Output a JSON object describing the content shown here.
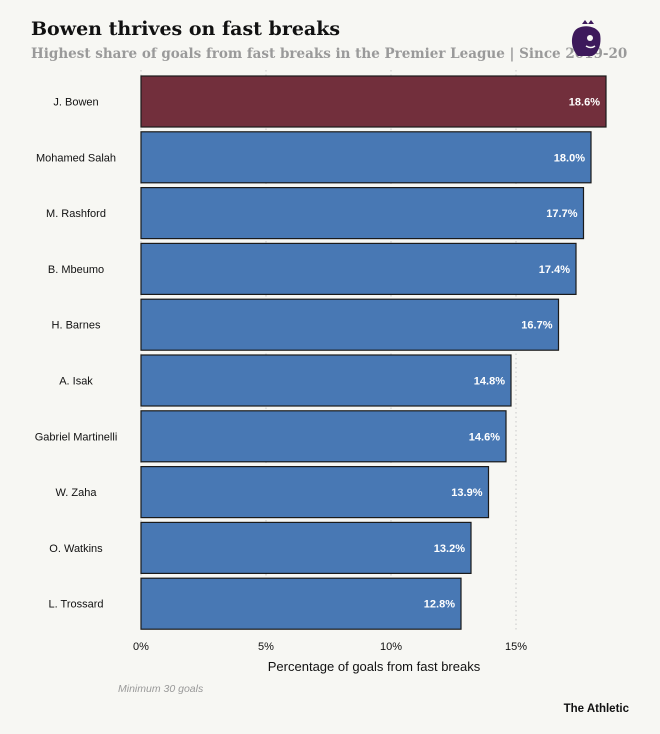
{
  "chart_data": {
    "type": "bar",
    "orientation": "horizontal",
    "title": "Bowen thrives on fast breaks",
    "subtitle": "Highest share of goals from fast breaks in the Premier League | Since 2019-20",
    "xlabel": "Percentage of goals from fast breaks",
    "ylabel": "",
    "xlim": [
      0,
      18.6
    ],
    "xticks": [
      "0%",
      "5%",
      "10%",
      "15%"
    ],
    "xtick_values": [
      0,
      5,
      10,
      15
    ],
    "grid": "vertical dotted",
    "categories": [
      "J. Bowen",
      "Mohamed Salah",
      "M. Rashford",
      "B. Mbeumo",
      "H. Barnes",
      "A. Isak",
      "Gabriel Martinelli",
      "W. Zaha",
      "O. Watkins",
      "L. Trossard"
    ],
    "values": [
      18.6,
      18.0,
      17.7,
      17.4,
      16.7,
      14.8,
      14.6,
      13.9,
      13.2,
      12.8
    ],
    "data_labels": [
      "18.6%",
      "18.0%",
      "17.7%",
      "17.4%",
      "16.7%",
      "14.8%",
      "14.6%",
      "13.9%",
      "13.2%",
      "12.8%"
    ],
    "colors": {
      "highlight": "#722f3c",
      "default": "#4878b4",
      "highlight_category": "J. Bowen"
    },
    "note": "Minimum 30 goals",
    "source_brand": "The Athletic",
    "logo": "premier-league-lion-logo"
  }
}
